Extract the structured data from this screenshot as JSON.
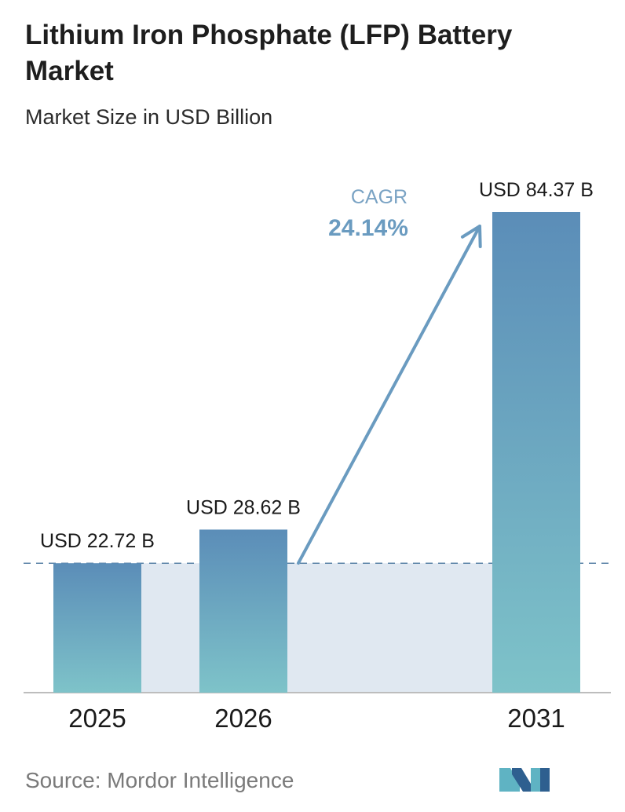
{
  "title": "Lithium Iron Phosphate (LFP) Battery Market",
  "subtitle": "Market Size in USD Billion",
  "source": "Source: Mordor Intelligence",
  "cagr": {
    "label": "CAGR",
    "value": "24.14%"
  },
  "colors": {
    "bar_top": "#5b8db8",
    "bar_bottom": "#7ec3c9",
    "band": "#e0e8f1",
    "dashed_line": "#5c84a8",
    "arrow": "#6a9bc0",
    "cagr_label": "#7aa3c4",
    "cagr_value": "#6a9bc0",
    "axis": "#bdbdbd",
    "logo_teal": "#5fb3c3",
    "logo_blue": "#2e5f8f"
  },
  "chart_data": {
    "type": "bar",
    "categories": [
      "2025",
      "2026",
      "2031"
    ],
    "values": [
      22.72,
      28.62,
      84.37
    ],
    "value_labels": [
      "USD 22.72 B",
      "USD 28.62 B",
      "USD 84.37 B"
    ],
    "ylim": [
      0,
      84.37
    ],
    "grid": false,
    "reference_line": 22.72
  }
}
